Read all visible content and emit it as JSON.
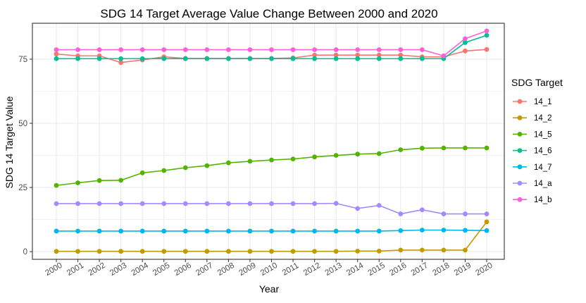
{
  "chart_data": {
    "type": "line",
    "title": "SDG 14 Target Average Value Change Between 2000 and 2020",
    "xlabel": "Year",
    "ylabel": "SDG 14 Target Value",
    "x": [
      "2000",
      "2001",
      "2002",
      "2003",
      "2004",
      "2005",
      "2006",
      "2007",
      "2008",
      "2009",
      "2010",
      "2011",
      "2012",
      "2013",
      "2014",
      "2015",
      "2016",
      "2017",
      "2018",
      "2019",
      "2020"
    ],
    "ylim": [
      -3,
      89
    ],
    "yticks": [
      0,
      25,
      50,
      75
    ],
    "ytick_labels": [
      "0",
      "25",
      "50",
      "75"
    ],
    "grid": true,
    "legend": {
      "title": "SDG Target",
      "position": "right"
    },
    "series": [
      {
        "name": "14_1",
        "color": "#F8766D",
        "values": [
          77,
          76.3,
          76.3,
          73.7,
          74.7,
          75.9,
          75.3,
          75.3,
          75.3,
          75.3,
          75.3,
          75.5,
          76.6,
          76.6,
          76.6,
          76.6,
          76.6,
          75.9,
          75.9,
          78.2,
          78.8
        ]
      },
      {
        "name": "14_2",
        "color": "#C49A00",
        "values": [
          0.1,
          0.1,
          0.1,
          0.1,
          0.1,
          0.1,
          0.1,
          0.1,
          0.1,
          0.1,
          0.1,
          0.1,
          0.1,
          0.1,
          0.2,
          0.2,
          0.6,
          0.6,
          0.6,
          0.6,
          11.6
        ]
      },
      {
        "name": "14_5",
        "color": "#53B400",
        "values": [
          25.8,
          26.8,
          27.7,
          27.8,
          30.7,
          31.6,
          32.7,
          33.5,
          34.6,
          35.2,
          35.7,
          36.1,
          36.9,
          37.5,
          38,
          38.2,
          39.7,
          40.3,
          40.4,
          40.4,
          40.4
        ]
      },
      {
        "name": "14_6",
        "color": "#00C094",
        "values": [
          75.2,
          75.2,
          75.2,
          75.2,
          75.2,
          75.2,
          75.2,
          75.2,
          75.2,
          75.2,
          75.2,
          75.2,
          75.2,
          75.2,
          75.2,
          75.2,
          75.2,
          75.2,
          75.2,
          81.5,
          84.3
        ]
      },
      {
        "name": "14_7",
        "color": "#00B6EB",
        "values": [
          8,
          8,
          8,
          8,
          8,
          8,
          8,
          8,
          8,
          8,
          8,
          8,
          8,
          8,
          8,
          8,
          8.2,
          8.4,
          8.4,
          8.3,
          8.2
        ]
      },
      {
        "name": "14_a",
        "color": "#A58AFF",
        "values": [
          18.7,
          18.7,
          18.7,
          18.7,
          18.7,
          18.7,
          18.7,
          18.7,
          18.7,
          18.7,
          18.7,
          18.7,
          18.7,
          18.8,
          16.8,
          18.0,
          14.7,
          16.3,
          14.7,
          14.7,
          14.7
        ]
      },
      {
        "name": "14_b",
        "color": "#FB61D7",
        "values": [
          78.7,
          78.7,
          78.7,
          78.7,
          78.7,
          78.7,
          78.7,
          78.7,
          78.7,
          78.7,
          78.7,
          78.7,
          78.7,
          78.7,
          78.7,
          78.7,
          78.7,
          78.7,
          76.3,
          83.0,
          86.0
        ]
      }
    ]
  }
}
